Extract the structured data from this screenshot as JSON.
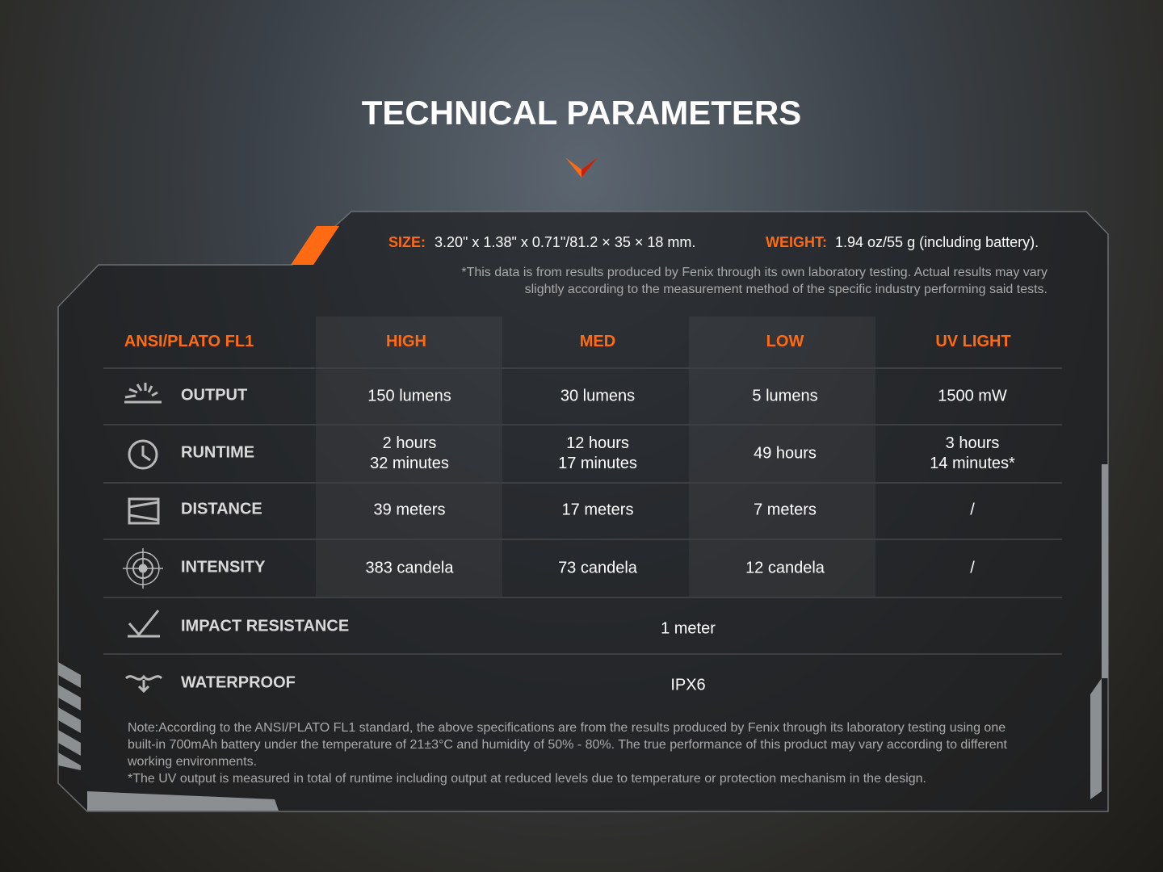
{
  "title": "TECHNICAL PARAMETERS",
  "size": {
    "label": "SIZE:",
    "value": "3.20\" x 1.38\" x 0.71\"/81.2 × 35 × 18 mm."
  },
  "weight": {
    "label": "WEIGHT:",
    "value": "1.94 oz/55 g (including battery)."
  },
  "disclaimer": [
    "*This data is from results produced by Fenix through its own laboratory testing. Actual results may vary",
    "slightly according to the measurement method of the specific industry performing said tests."
  ],
  "table": {
    "header": [
      "ANSI/PLATO FL1",
      "HIGH",
      "MED",
      "LOW",
      "UV LIGHT"
    ],
    "rows": [
      {
        "label": "OUTPUT",
        "cells": [
          [
            "150 lumens"
          ],
          [
            "30 lumens"
          ],
          [
            "5 lumens"
          ],
          [
            "1500 mW"
          ]
        ]
      },
      {
        "label": "RUNTIME",
        "cells": [
          [
            "2 hours",
            "32 minutes"
          ],
          [
            "12 hours",
            "17 minutes"
          ],
          [
            "49 hours"
          ],
          [
            "3 hours",
            "14 minutes*"
          ]
        ]
      },
      {
        "label": "DISTANCE",
        "cells": [
          [
            "39 meters"
          ],
          [
            "17 meters"
          ],
          [
            "7 meters"
          ],
          [
            "/"
          ]
        ]
      },
      {
        "label": "INTENSITY",
        "cells": [
          [
            "383 candela"
          ],
          [
            "73 candela"
          ],
          [
            "12 candela"
          ],
          [
            "/"
          ]
        ]
      },
      {
        "label": "IMPACT RESISTANCE",
        "merged": "1 meter"
      },
      {
        "label": "WATERPROOF",
        "merged": "IPX6"
      }
    ]
  },
  "notes": [
    "Note:According to the ANSI/PLATO FL1 standard, the above specifications are from the results produced by Fenix through its laboratory testing using one",
    "built-in 700mAh battery under the temperature of 21±3°C and humidity of 50% - 80%. The true performance of this product may vary according to different",
    "working environments.",
    "*The UV output is measured in total of runtime including output at reduced levels due to temperature or protection mechanism in the design."
  ]
}
